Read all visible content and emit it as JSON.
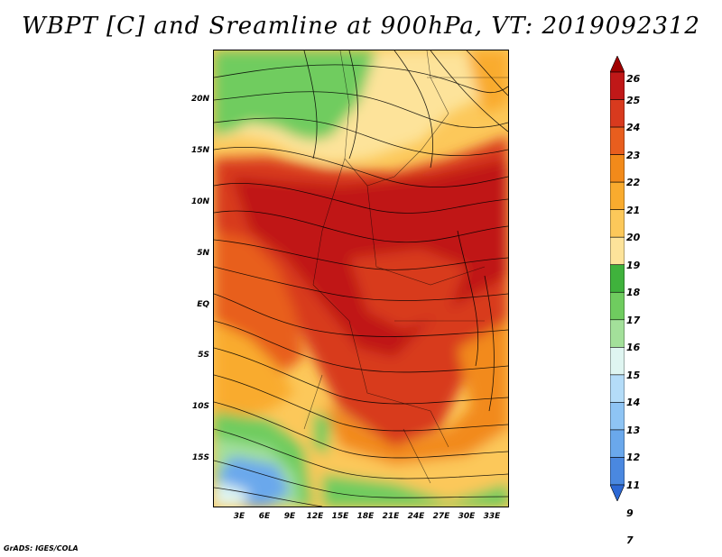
{
  "title": "WBPT [C] and Sreamline at 900hPa, VT: 2019092312",
  "credit": "GrADS: IGES/COLA",
  "map": {
    "lat_labels": [
      "20N",
      "15N",
      "10N",
      "5N",
      "EQ",
      "5S",
      "10S",
      "15S"
    ],
    "lon_labels": [
      "3E",
      "6E",
      "9E",
      "12E",
      "15E",
      "18E",
      "21E",
      "24E",
      "27E",
      "30E",
      "33E"
    ]
  },
  "colorbar": {
    "labels": [
      "26",
      "25",
      "24",
      "23",
      "22",
      "21",
      "20",
      "19",
      "18",
      "17",
      "16",
      "15",
      "14",
      "13",
      "12",
      "11",
      "9",
      "7"
    ],
    "colors": [
      "#a00000",
      "#c01818",
      "#d83a1e",
      "#e85e1e",
      "#f28a1a",
      "#f9ab2e",
      "#fcc85a",
      "#fde39a",
      "#3fb23c",
      "#6fcc5f",
      "#a3e09a",
      "#dff5f1",
      "#b4dcf8",
      "#8ec4f4",
      "#6aa8ec",
      "#4a88e0",
      "#2c68d4"
    ]
  }
}
